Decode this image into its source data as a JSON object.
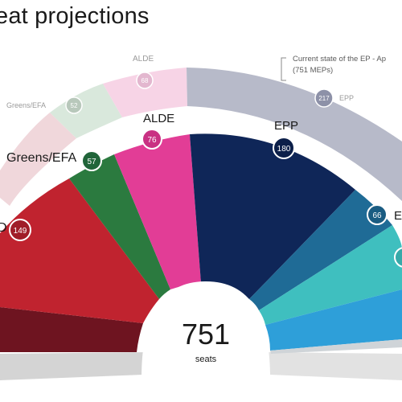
{
  "title": "eat projections",
  "chart_data": {
    "type": "pie",
    "subtype": "hemicycle",
    "center_label": {
      "value": "751",
      "unit": "seats"
    },
    "annotation": {
      "line1": "Current state of the EP - Ap",
      "line2": "(751 MEPs)"
    },
    "projection": [
      {
        "label": "",
        "value": null,
        "color": "#6e1420"
      },
      {
        "label": "D",
        "value": 149,
        "color": "#c0232f"
      },
      {
        "label": "Greens/EFA",
        "value": 57,
        "color": "#2b7a3f"
      },
      {
        "label": "ALDE",
        "value": 76,
        "color": "#e23d96"
      },
      {
        "label": "EPP",
        "value": 180,
        "color": "#0f2658"
      },
      {
        "label": "E",
        "value": 66,
        "color": "#1f6b96"
      },
      {
        "label": "",
        "value": null,
        "color": "#3fbfbf"
      },
      {
        "label": "",
        "value": null,
        "color": "#2e9fd9"
      }
    ],
    "current": [
      {
        "label": "",
        "value": null,
        "color": "#f0d7db"
      },
      {
        "label": "Greens/EFA",
        "value": 52,
        "color": "#d9e8dc"
      },
      {
        "label": "ALDE",
        "value": 68,
        "color": "#f7d4e6"
      },
      {
        "label": "EPP",
        "value": 217,
        "color": "#b7bac9"
      }
    ]
  }
}
